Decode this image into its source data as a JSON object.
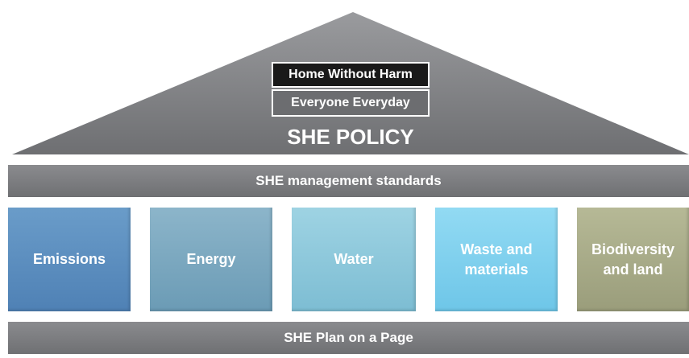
{
  "roof": {
    "values": [
      "Home Without Harm",
      "Everyone Everyday"
    ],
    "title": "SHE POLICY"
  },
  "standards": "SHE management standards",
  "pillars": [
    "Emissions",
    "Energy",
    "Water",
    "Waste and materials",
    "Biodiversity and land"
  ],
  "base": "SHE Plan on a Page"
}
